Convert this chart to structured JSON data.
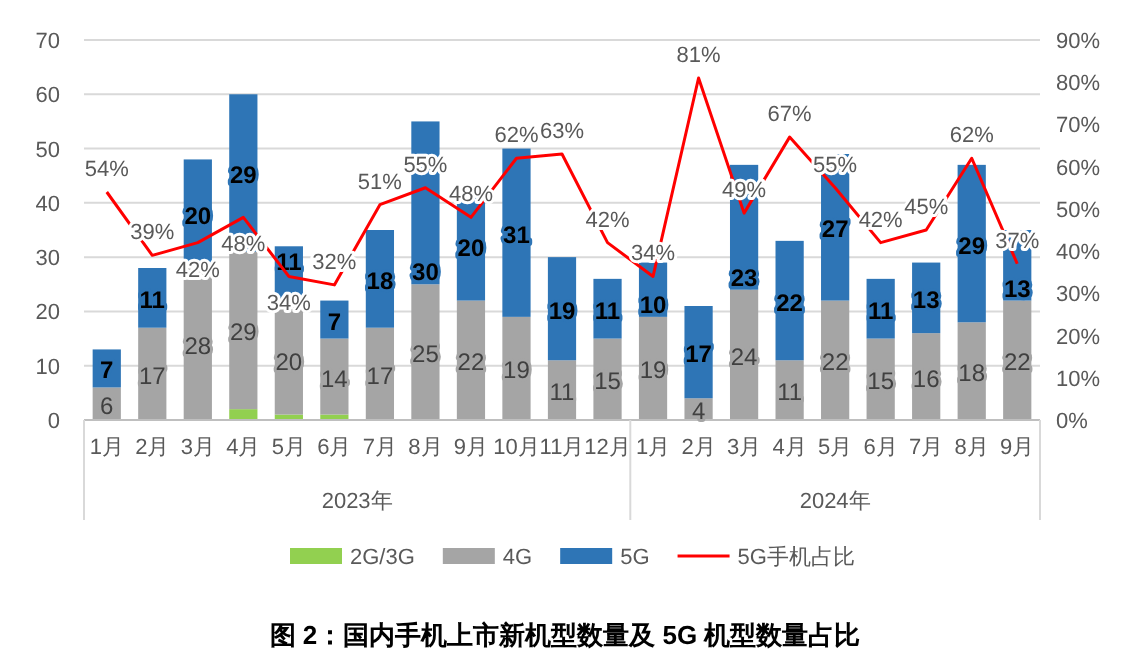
{
  "chart_data": {
    "type": "bar",
    "stacked": true,
    "title": "图 2：国内手机上市新机型数量及 5G 机型数量占比",
    "categories": [
      "1月",
      "2月",
      "3月",
      "4月",
      "5月",
      "6月",
      "7月",
      "8月",
      "9月",
      "10月",
      "11月",
      "12月",
      "1月",
      "2月",
      "3月",
      "4月",
      "5月",
      "6月",
      "7月",
      "8月",
      "9月"
    ],
    "annotations": [
      "2023年",
      "2024年"
    ],
    "series": [
      {
        "name": "2G/3G",
        "color": "#92d050",
        "values": [
          0,
          0,
          0,
          2,
          1,
          1,
          0,
          0,
          0,
          0,
          0,
          0,
          0,
          0,
          0,
          0,
          0,
          0,
          0,
          0,
          0
        ]
      },
      {
        "name": "4G",
        "color": "#a5a5a5",
        "values": [
          6,
          17,
          28,
          29,
          20,
          14,
          17,
          25,
          22,
          19,
          11,
          15,
          19,
          4,
          24,
          11,
          22,
          15,
          16,
          18,
          22
        ],
        "value_labels": [
          "6",
          "17",
          "28",
          "29",
          "20",
          "14",
          "17",
          "25",
          "22",
          "19",
          "11",
          "15",
          "19",
          "4",
          "24",
          "11",
          "22",
          "15",
          "16",
          "18",
          "22"
        ]
      },
      {
        "name": "5G",
        "color": "#2e75b6",
        "values": [
          7,
          11,
          20,
          29,
          11,
          7,
          18,
          30,
          20,
          31,
          19,
          11,
          10,
          17,
          23,
          22,
          27,
          11,
          13,
          29,
          13
        ],
        "value_labels": [
          "7",
          "11",
          "20",
          "29",
          "11",
          "7",
          "18",
          "30",
          "20",
          "31",
          "19",
          "11",
          "10",
          "17",
          "23",
          "22",
          "27",
          "11",
          "13",
          "29",
          "13"
        ]
      },
      {
        "name": "5G手机占比",
        "type": "line",
        "axis": "y2",
        "color": "#ff0000",
        "values": [
          54,
          39,
          42,
          48,
          34,
          32,
          51,
          55,
          48,
          62,
          63,
          42,
          34,
          81,
          49,
          67,
          55,
          42,
          45,
          62,
          37
        ],
        "value_labels": [
          "54%",
          "39%",
          "42%",
          "48%",
          "34%",
          "32%",
          "51%",
          "55%",
          "48%",
          "62%",
          "63%",
          "42%",
          "34%",
          "81%",
          "49%",
          "67%",
          "55%",
          "42%",
          "45%",
          "62%",
          "37%"
        ]
      }
    ],
    "ylim": [
      0,
      70
    ],
    "yticks": [
      0,
      10,
      20,
      30,
      40,
      50,
      60,
      70
    ],
    "y2lim": [
      0,
      90
    ],
    "y2ticks": [
      {
        "value": 0,
        "label": "0%"
      },
      {
        "value": 10,
        "label": "10%"
      },
      {
        "value": 20,
        "label": "20%"
      },
      {
        "value": 30,
        "label": "30%"
      },
      {
        "value": 40,
        "label": "40%"
      },
      {
        "value": 50,
        "label": "50%"
      },
      {
        "value": 60,
        "label": "60%"
      },
      {
        "value": 70,
        "label": "70%"
      },
      {
        "value": 80,
        "label": "80%"
      },
      {
        "value": 90,
        "label": "90%"
      }
    ],
    "grid": "y",
    "legend": "bottom"
  }
}
